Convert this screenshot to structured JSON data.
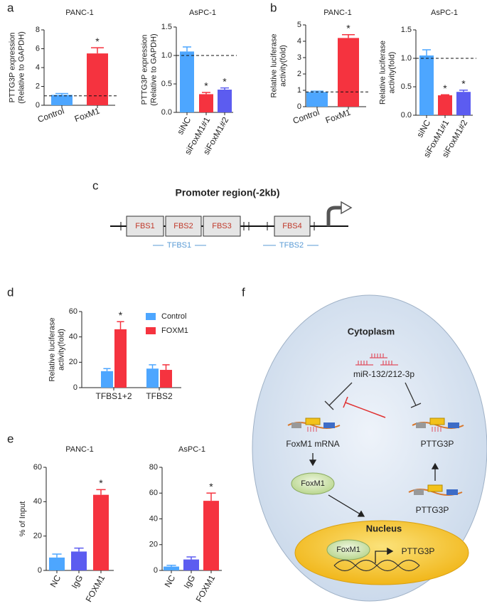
{
  "panel_labels": [
    "a",
    "b",
    "c",
    "d",
    "e",
    "f"
  ],
  "chart_data": [
    {
      "type": "bar",
      "title": "PANC-1",
      "ylabel": [
        "PTTG3P expression",
        "(Relative to GAPDH)"
      ],
      "categories": [
        "Control",
        "FoxM1"
      ],
      "values": [
        1.1,
        5.5
      ],
      "errors": [
        0.15,
        0.6
      ],
      "value_labels": [
        null,
        "*"
      ],
      "colors": [
        "#4da6ff",
        "#f5333f"
      ],
      "ylim": [
        0,
        8
      ],
      "yticks": [
        0,
        2,
        4,
        6,
        8
      ],
      "reference_line": 1
    },
    {
      "type": "bar",
      "title": "AsPC-1",
      "ylabel": [
        "PTTG3P expression",
        "(Relative to GAPDH)"
      ],
      "categories": [
        "siNC",
        "siFoxM1#1",
        "siFoxM1#2"
      ],
      "values": [
        1.07,
        0.32,
        0.4
      ],
      "errors": [
        0.08,
        0.03,
        0.03
      ],
      "value_labels": [
        null,
        "*",
        "*"
      ],
      "colors": [
        "#4da6ff",
        "#f5333f",
        "#5c5cf0"
      ],
      "ylim": [
        0,
        1.5
      ],
      "yticks": [
        {
          "value": 0,
          "label": "0.0"
        },
        0.5,
        {
          "value": 1,
          "label": "1.0"
        },
        1.5
      ],
      "reference_line": 1
    },
    {
      "type": "bar",
      "title": "PANC-1",
      "ylabel": [
        "Relative luciferase",
        "activity(fold)"
      ],
      "categories": [
        "Control",
        "FoxM1"
      ],
      "values": [
        0.9,
        4.2
      ],
      "errors": [
        0.05,
        0.2
      ],
      "value_labels": [
        null,
        "*"
      ],
      "colors": [
        "#4da6ff",
        "#f5333f"
      ],
      "ylim": [
        0,
        5
      ],
      "yticks": [
        0,
        1,
        2,
        3,
        4,
        5
      ],
      "reference_line": 0.9
    },
    {
      "type": "bar",
      "title": "AsPC-1",
      "ylabel": [
        "Relative luciferase",
        "activity(fold)"
      ],
      "categories": [
        "siNC",
        "siFoxM1#1",
        "siFoxM1#2"
      ],
      "values": [
        1.05,
        0.35,
        0.41
      ],
      "errors": [
        0.1,
        0.01,
        0.03
      ],
      "value_labels": [
        null,
        "*",
        "*"
      ],
      "colors": [
        "#4da6ff",
        "#f5333f",
        "#5c5cf0"
      ],
      "ylim": [
        0,
        1.5
      ],
      "yticks": [
        {
          "value": 0,
          "label": "0.0"
        },
        0.5,
        {
          "value": 1,
          "label": "1.0"
        },
        1.5
      ],
      "reference_line": 1
    },
    {
      "type": "grouped_bar",
      "ylabel": [
        "Relative luciferase",
        "activity(fold)"
      ],
      "categories": [
        "TFBS1+2",
        "TFBS2"
      ],
      "legend": "upper right",
      "series": [
        {
          "name": "Control",
          "color": "#4da6ff",
          "values": [
            13,
            15
          ],
          "errors": [
            2,
            3
          ],
          "value_labels": [
            null,
            null
          ]
        },
        {
          "name": "FOXM1",
          "color": "#f5333f",
          "values": [
            46,
            14
          ],
          "errors": [
            6,
            4
          ],
          "value_labels": [
            "*",
            null
          ]
        }
      ],
      "ylim": [
        0,
        60
      ],
      "yticks": [
        0,
        20,
        40,
        60
      ]
    },
    {
      "type": "bar",
      "title": "PANC-1",
      "ylabel": [
        "% of Input"
      ],
      "categories": [
        "NC",
        "IgG",
        "FOXM1"
      ],
      "values": [
        7.5,
        11,
        44
      ],
      "errors": [
        2,
        2,
        3
      ],
      "value_labels": [
        null,
        null,
        "*"
      ],
      "colors": [
        "#4da6ff",
        "#5c5cf0",
        "#f5333f"
      ],
      "ylim": [
        0,
        60
      ],
      "yticks": [
        0,
        20,
        40,
        60
      ]
    },
    {
      "type": "bar",
      "title": "AsPC-1",
      "categories": [
        "NC",
        "IgG",
        "FOXM1"
      ],
      "values": [
        3,
        8.5,
        54
      ],
      "errors": [
        1,
        2,
        6
      ],
      "value_labels": [
        null,
        null,
        "*"
      ],
      "colors": [
        "#4da6ff",
        "#5c5cf0",
        "#f5333f"
      ],
      "ylim": [
        0,
        80
      ],
      "yticks": [
        0,
        20,
        40,
        60,
        80
      ]
    }
  ],
  "promoter": {
    "title": "Promoter region(-2kb)",
    "boxes": [
      "FBS1",
      "FBS2",
      "FBS3",
      "FBS4"
    ],
    "sites": [
      "TFBS1",
      "TFBS2"
    ]
  },
  "pathway": {
    "cytoplasm": "Cytoplasm",
    "mirna": "miR-132/212-3p",
    "mrna": "FoxM1 mRNA",
    "pseudogene": "PTTG3P",
    "pseudogene_transcript": "PTTG3P",
    "protein": "FoxM1",
    "nucleus": "Nucleus",
    "nuclear_protein": "FoxM1",
    "nuclear_gene": "PTTG3P"
  }
}
